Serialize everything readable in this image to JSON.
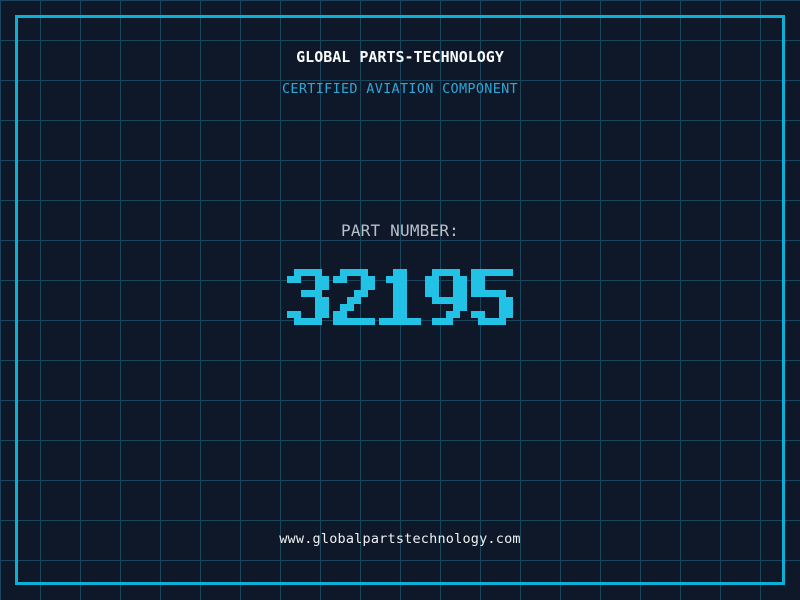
{
  "header": {
    "title": "GLOBAL PARTS-TECHNOLOGY",
    "subtitle": "CERTIFIED AVIATION COMPONENT"
  },
  "part": {
    "label": "PART NUMBER:",
    "number": "32195"
  },
  "footer": {
    "url": "www.globalpartstechnology.com"
  },
  "colors": {
    "background": "#0f1828",
    "grid_line": "#17465e",
    "frame_cyan": "#0cb0d6",
    "digit_cyan": "#22c2e6",
    "subtitle_cyan": "#2fa6d6",
    "title_white": "#f8fafc",
    "label_gray": "#b9c0ca",
    "url_white": "#eef2f5"
  }
}
